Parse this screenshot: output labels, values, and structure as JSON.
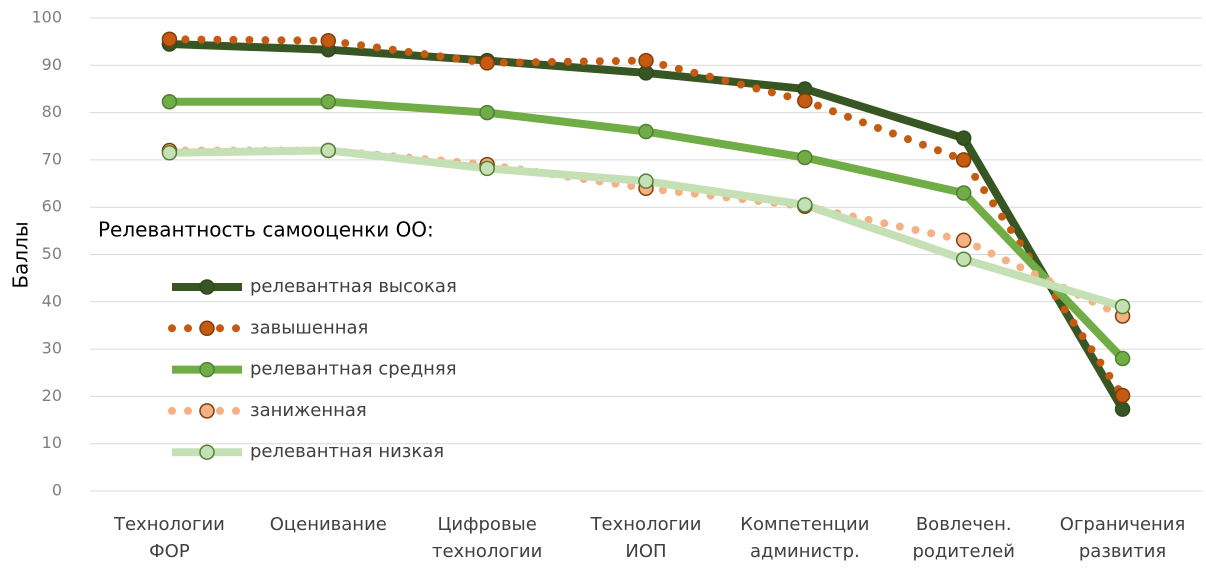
{
  "chart_data": {
    "type": "line",
    "y_label": "Баллы",
    "legend_title": "Релевантность самооценки ОО:",
    "categories": [
      "Технологии ФОР",
      "Оценивание",
      "Цифровые технологии",
      "Технологии ИОП",
      "Компетенции администр.",
      "Вовлечен. родителей",
      "Ограничения развития"
    ],
    "series": [
      {
        "name": "релевантная высокая",
        "color": "#375623",
        "style": "solid",
        "values": [
          94.5,
          93.3,
          91,
          88.4,
          85,
          74.6,
          17.3
        ]
      },
      {
        "name": "завышенная",
        "color": "#c55a11",
        "style": "dotted",
        "values": [
          95.5,
          95.2,
          90.5,
          91,
          82.5,
          70,
          20.2
        ]
      },
      {
        "name": "релевантная средняя",
        "color": "#70ad47",
        "style": "solid",
        "values": [
          82.3,
          82.3,
          80,
          76,
          70.5,
          63,
          28
        ]
      },
      {
        "name": "заниженная",
        "color": "#f4b183",
        "style": "dotted",
        "values": [
          72,
          72,
          69,
          64,
          60.2,
          53,
          37
        ]
      },
      {
        "name": "релевантная низкая",
        "color": "#c5e0b4",
        "style": "solid",
        "values": [
          71.5,
          72,
          68.2,
          65.5,
          60.5,
          49,
          39
        ]
      }
    ],
    "ylim": [
      0,
      100
    ],
    "yticks": [
      0,
      10,
      20,
      30,
      40,
      50,
      60,
      70,
      80,
      90,
      100
    ],
    "grid": true,
    "legend": "left"
  }
}
